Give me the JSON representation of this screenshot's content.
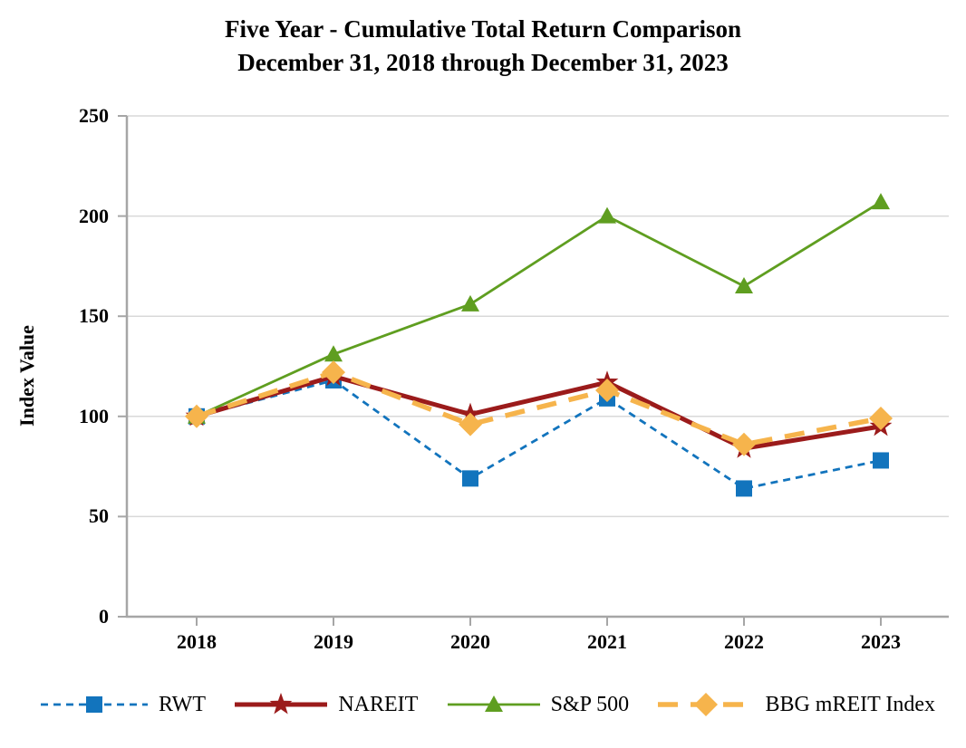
{
  "title": {
    "line1": "Five Year - Cumulative Total Return Comparison",
    "line2": "December 31, 2018 through December 31, 2023"
  },
  "chart_data": {
    "type": "line",
    "title": "Five Year - Cumulative Total Return Comparison December 31, 2018 through December 31, 2023",
    "xlabel": "",
    "ylabel": "Index Value",
    "categories": [
      "2018",
      "2019",
      "2020",
      "2021",
      "2022",
      "2023"
    ],
    "yticks": [
      "0",
      "50",
      "100",
      "150",
      "200",
      "250"
    ],
    "ylim": [
      0,
      250
    ],
    "grid": "horizontal",
    "legend_position": "bottom",
    "series": [
      {
        "name": "RWT",
        "color": "#1274BD",
        "marker": "square",
        "line_style": "dash",
        "line_width": 2.8,
        "values": [
          100,
          118,
          69,
          109,
          64,
          78
        ]
      },
      {
        "name": "NAREIT",
        "color": "#9B1B1B",
        "marker": "star",
        "line_style": "solid",
        "line_width": 5,
        "values": [
          100,
          120,
          101,
          117,
          84,
          95
        ]
      },
      {
        "name": "S&P 500",
        "color": "#5F9E20",
        "marker": "triangle",
        "line_style": "solid",
        "line_width": 2.8,
        "values": [
          100,
          131,
          156,
          200,
          165,
          207
        ]
      },
      {
        "name": "BBG mREIT Index",
        "color": "#F6B44C",
        "marker": "diamond",
        "line_style": "long-dash",
        "line_width": 5.5,
        "values": [
          100,
          122,
          96,
          113,
          86,
          99
        ]
      }
    ],
    "axis_color": "#A6A6A6",
    "gridline_color": "#D9D9D9"
  }
}
